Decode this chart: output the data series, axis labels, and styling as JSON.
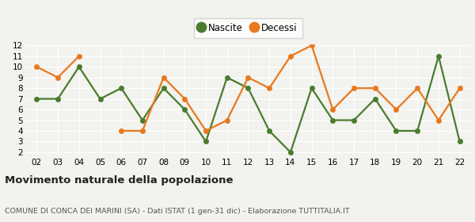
{
  "years": [
    "02",
    "03",
    "04",
    "05",
    "06",
    "07",
    "08",
    "09",
    "10",
    "11",
    "12",
    "13",
    "14",
    "15",
    "16",
    "17",
    "18",
    "19",
    "20",
    "21",
    "22"
  ],
  "nascite": [
    7,
    7,
    10,
    7,
    8,
    5,
    8,
    6,
    3,
    9,
    8,
    4,
    2,
    8,
    5,
    5,
    7,
    4,
    4,
    11,
    3
  ],
  "decessi": [
    10,
    9,
    11,
    null,
    4,
    4,
    9,
    7,
    4,
    5,
    9,
    8,
    11,
    12,
    6,
    8,
    8,
    6,
    8,
    5,
    8
  ],
  "nascite_color": "#4a7c2f",
  "decessi_color": "#e8791e",
  "marker_size": 5,
  "line_width": 1.6,
  "ylim": [
    2,
    12
  ],
  "yticks": [
    2,
    3,
    4,
    5,
    6,
    7,
    8,
    9,
    10,
    11,
    12
  ],
  "title": "Movimento naturale della popolazione",
  "subtitle": "COMUNE DI CONCA DEI MARINI (SA) - Dati ISTAT (1 gen-31 dic) - Elaborazione TUTTITALIA.IT",
  "legend_nascite": "Nascite",
  "legend_decessi": "Decessi",
  "bg_color": "#f2f2ee",
  "grid_color": "#ffffff"
}
